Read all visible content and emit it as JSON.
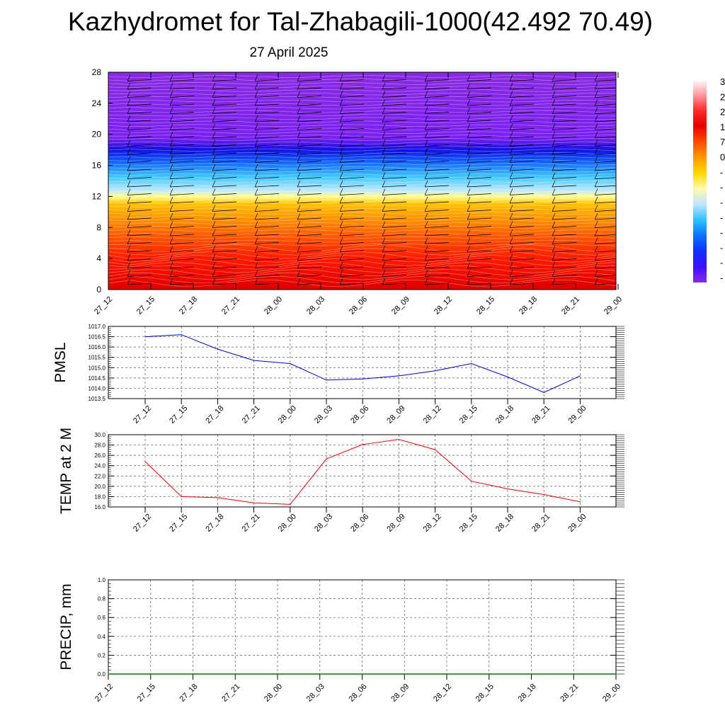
{
  "title": "Kazhydromet for Tal-Zhabagili-1000(42.492 70.49)",
  "subtitle": "27 April 2025",
  "colorbar": {
    "labels": [
      "3",
      "2",
      "2",
      "1",
      "7",
      "0",
      "-",
      "-",
      "-",
      "-",
      "-",
      "-",
      "-",
      "-"
    ],
    "colors": [
      "#ffffff",
      "#ff9aa0",
      "#ff2a2a",
      "#e80000",
      "#ff4a00",
      "#ff9a00",
      "#ffd800",
      "#fffab0",
      "#bfe4ff",
      "#30c0ff",
      "#1070ff",
      "#1030ff",
      "#3a10ff",
      "#8a2be2"
    ]
  },
  "chart_data": [
    {
      "type": "heatmap",
      "name": "height-time-section",
      "x_ticks": [
        "27_12",
        "27_15",
        "27_18",
        "27_21",
        "28_00",
        "28_03",
        "28_06",
        "28_09",
        "28_12",
        "28_15",
        "28_18",
        "28_21",
        "29_00"
      ],
      "y_ticks": [
        "0",
        "4",
        "8",
        "12",
        "16",
        "20",
        "24",
        "28"
      ],
      "ylim": [
        0,
        28
      ],
      "color_profile": [
        {
          "y": 0,
          "color": "#dd0000"
        },
        {
          "y": 4,
          "color": "#ff1a00"
        },
        {
          "y": 7,
          "color": "#ff5a00"
        },
        {
          "y": 9,
          "color": "#ff9000"
        },
        {
          "y": 11,
          "color": "#ffc000"
        },
        {
          "y": 12,
          "color": "#ffff90"
        },
        {
          "y": 12.8,
          "color": "#bfe8ff"
        },
        {
          "y": 14.5,
          "color": "#40c8ff"
        },
        {
          "y": 16.5,
          "color": "#1060ff"
        },
        {
          "y": 18,
          "color": "#1010e0"
        },
        {
          "y": 19.5,
          "color": "#7a20f0"
        },
        {
          "y": 28,
          "color": "#8a2be2"
        }
      ]
    },
    {
      "type": "line",
      "name": "pmsl",
      "ylabel": "PMSL",
      "categories": [
        "27_12",
        "27_15",
        "27_18",
        "27_21",
        "28_00",
        "28_03",
        "28_06",
        "28_09",
        "28_12",
        "28_15",
        "28_18",
        "28_21",
        "29_00"
      ],
      "y_ticks": [
        "1013.5",
        "1014.0",
        "1014.5",
        "1015.0",
        "1015.5",
        "1016.0",
        "1016.5",
        "1017.0"
      ],
      "ylim": [
        1013.5,
        1017.0
      ],
      "values": [
        1016.5,
        1016.6,
        1015.9,
        1015.35,
        1015.2,
        1014.4,
        1014.45,
        1014.6,
        1014.85,
        1015.2,
        1014.55,
        1013.8,
        1014.6
      ],
      "color": "#0000cc"
    },
    {
      "type": "line",
      "name": "temp-2m",
      "ylabel": "TEMP at 2 M",
      "categories": [
        "27_12",
        "27_15",
        "27_18",
        "27_21",
        "28_00",
        "28_03",
        "28_06",
        "28_09",
        "28_12",
        "28_15",
        "28_18",
        "28_21",
        "29_00"
      ],
      "y_ticks": [
        "16.0",
        "18.0",
        "20.0",
        "22.0",
        "24.0",
        "26.0",
        "28.0",
        "30.0"
      ],
      "ylim": [
        16.0,
        30.0
      ],
      "values": [
        24.8,
        18.0,
        17.8,
        16.8,
        16.5,
        25.3,
        28.1,
        29.1,
        27.1,
        21.0,
        19.5,
        18.4,
        17.0
      ],
      "color": "#ee0000"
    },
    {
      "type": "line",
      "name": "precip",
      "ylabel": "PRECIP, mm",
      "categories": [
        "27_12",
        "27_15",
        "27_18",
        "27_21",
        "28_00",
        "28_03",
        "28_06",
        "28_09",
        "28_12",
        "28_15",
        "28_18",
        "28_21",
        "29_00"
      ],
      "y_ticks": [
        "0.0",
        "0.2",
        "0.4",
        "0.6",
        "0.8",
        "1.0"
      ],
      "ylim": [
        0.0,
        1.0
      ],
      "values": [
        0,
        0,
        0,
        0,
        0,
        0,
        0,
        0,
        0,
        0,
        0,
        0,
        0
      ],
      "color": "#007700"
    }
  ]
}
